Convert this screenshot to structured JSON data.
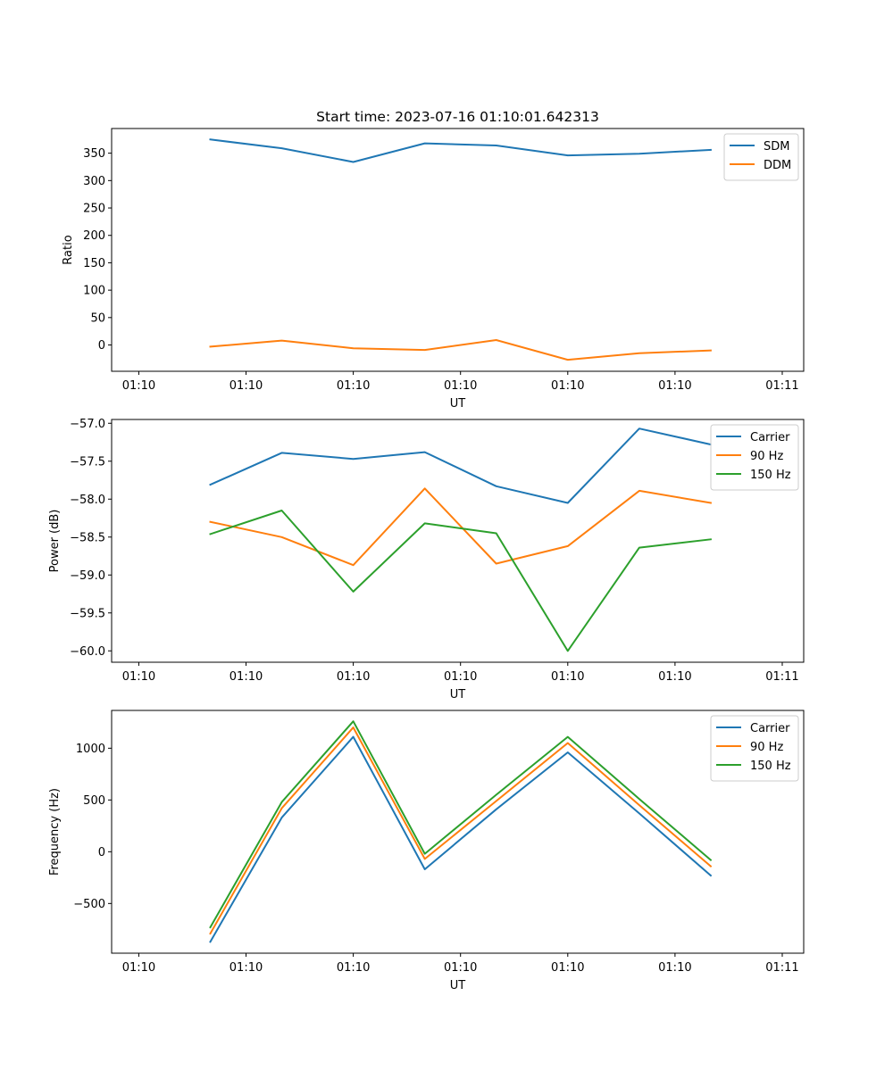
{
  "chart_data": [
    {
      "type": "line",
      "title": "Start time: 2023-07-16 01:10:01.642313",
      "xlabel": "UT",
      "ylabel": "Ratio",
      "x_ticks": [
        "01:10",
        "01:10",
        "01:10",
        "01:10",
        "01:10",
        "01:10",
        "01:11"
      ],
      "xlim": [
        -0.38,
        9.3
      ],
      "x": [
        1,
        2,
        3,
        4,
        5,
        6,
        7,
        8
      ],
      "ylim": [
        -48,
        395
      ],
      "y_ticks": [
        0,
        50,
        100,
        150,
        200,
        250,
        300,
        350
      ],
      "legend": "top-right",
      "series": [
        {
          "name": "SDM",
          "color": "#1f77b4",
          "values": [
            375,
            359,
            334,
            368,
            364,
            346,
            349,
            356
          ]
        },
        {
          "name": "DDM",
          "color": "#ff7f0e",
          "values": [
            -3,
            8,
            -6,
            -9,
            9,
            -27,
            -15,
            -10
          ]
        }
      ]
    },
    {
      "type": "line",
      "title": "",
      "xlabel": "UT",
      "ylabel": "Power (dB)",
      "x_ticks": [
        "01:10",
        "01:10",
        "01:10",
        "01:10",
        "01:10",
        "01:10",
        "01:11"
      ],
      "xlim": [
        -0.38,
        9.3
      ],
      "x": [
        1,
        2,
        3,
        4,
        5,
        6,
        7,
        8
      ],
      "ylim": [
        -60.15,
        -56.95
      ],
      "y_ticks": [
        -60.0,
        -59.5,
        -59.0,
        -58.5,
        -58.0,
        -57.5,
        -57.0
      ],
      "y_tick_labels": [
        "−60.0",
        "−59.5",
        "−59.0",
        "−58.5",
        "−58.0",
        "−57.5",
        "−57.0"
      ],
      "legend": "top-right",
      "series": [
        {
          "name": "Carrier",
          "color": "#1f77b4",
          "values": [
            -57.81,
            -57.39,
            -57.47,
            -57.38,
            -57.83,
            -58.05,
            -57.07,
            -57.28
          ]
        },
        {
          "name": "90 Hz",
          "color": "#ff7f0e",
          "values": [
            -58.3,
            -58.5,
            -58.87,
            -57.86,
            -58.85,
            -58.62,
            -57.89,
            -58.05
          ]
        },
        {
          "name": "150 Hz",
          "color": "#2ca02c",
          "values": [
            -58.46,
            -58.15,
            -59.22,
            -58.32,
            -58.45,
            -60.0,
            -58.64,
            -58.53
          ]
        }
      ]
    },
    {
      "type": "line",
      "title": "",
      "xlabel": "UT",
      "ylabel": "Frequency (Hz)",
      "x_ticks": [
        "01:10",
        "01:10",
        "01:10",
        "01:10",
        "01:10",
        "01:10",
        "01:11"
      ],
      "xlim": [
        -0.38,
        9.3
      ],
      "x": [
        1,
        2,
        3,
        4,
        5,
        6,
        7,
        8
      ],
      "ylim": [
        -980,
        1365
      ],
      "y_ticks": [
        -500,
        0,
        500,
        1000
      ],
      "y_tick_labels": [
        "−500",
        "0",
        "500",
        "1000"
      ],
      "legend": "top-right",
      "series": [
        {
          "name": "Carrier",
          "color": "#1f77b4",
          "values": [
            -870,
            330,
            1110,
            -170,
            410,
            960,
            370,
            -230
          ]
        },
        {
          "name": "90 Hz",
          "color": "#ff7f0e",
          "values": [
            -790,
            420,
            1200,
            -70,
            490,
            1050,
            450,
            -140
          ]
        },
        {
          "name": "150 Hz",
          "color": "#2ca02c",
          "values": [
            -730,
            480,
            1260,
            -20,
            550,
            1110,
            510,
            -80
          ]
        }
      ]
    }
  ]
}
